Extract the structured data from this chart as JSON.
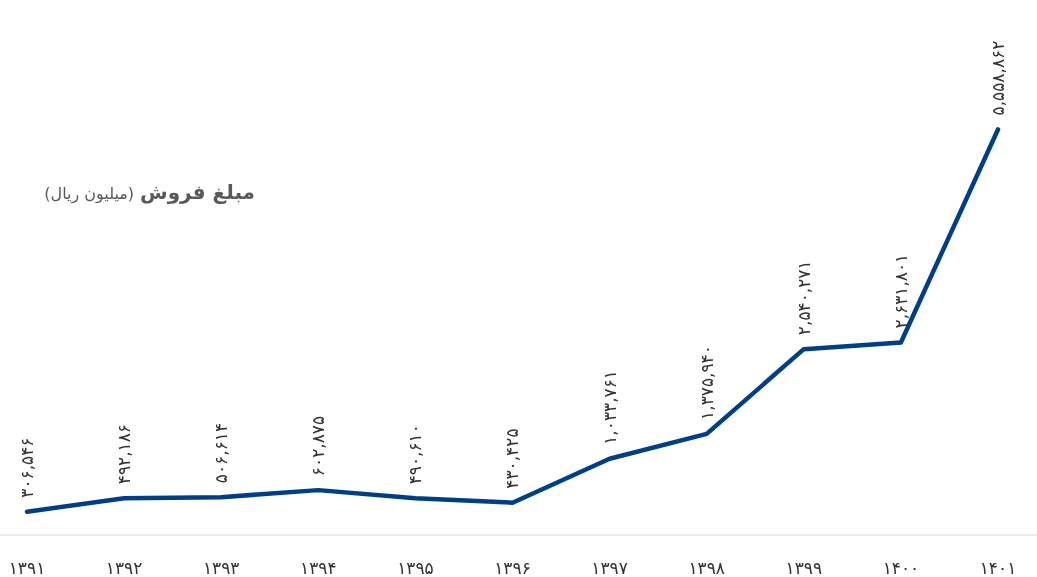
{
  "chart_data": {
    "type": "line",
    "title": "مبلغ فروش",
    "subtitle": "(میلیون ریال)",
    "categories": [
      "۱۳۹۱",
      "۱۳۹۲",
      "۱۳۹۳",
      "۱۳۹۴",
      "۱۳۹۵",
      "۱۳۹۶",
      "۱۳۹۷",
      "۱۳۹۸",
      "۱۳۹۹",
      "۱۴۰۰",
      "۱۴۰۱"
    ],
    "series": [
      {
        "color": "#003f87",
        "values": [
          306546,
          492186,
          506614,
          602875,
          490610,
          430425,
          1033761,
          1375940,
          2540271,
          2631801,
          5558862
        ],
        "value_labels": [
          "۳۰۶,۵۴۶",
          "۴۹۲,۱۸۶",
          "۵۰۶,۶۱۴",
          "۶۰۲,۸۷۵",
          "۴۹۰,۶۱۰",
          "۴۳۰,۴۲۵",
          "۱,۰۳۳,۷۶۱",
          "۱,۳۷۵,۹۴۰",
          "۲,۵۴۰,۲۷۱",
          "۲,۶۳۱,۸۰۱",
          "۵,۵۵۸,۸۶۲"
        ]
      }
    ]
  }
}
